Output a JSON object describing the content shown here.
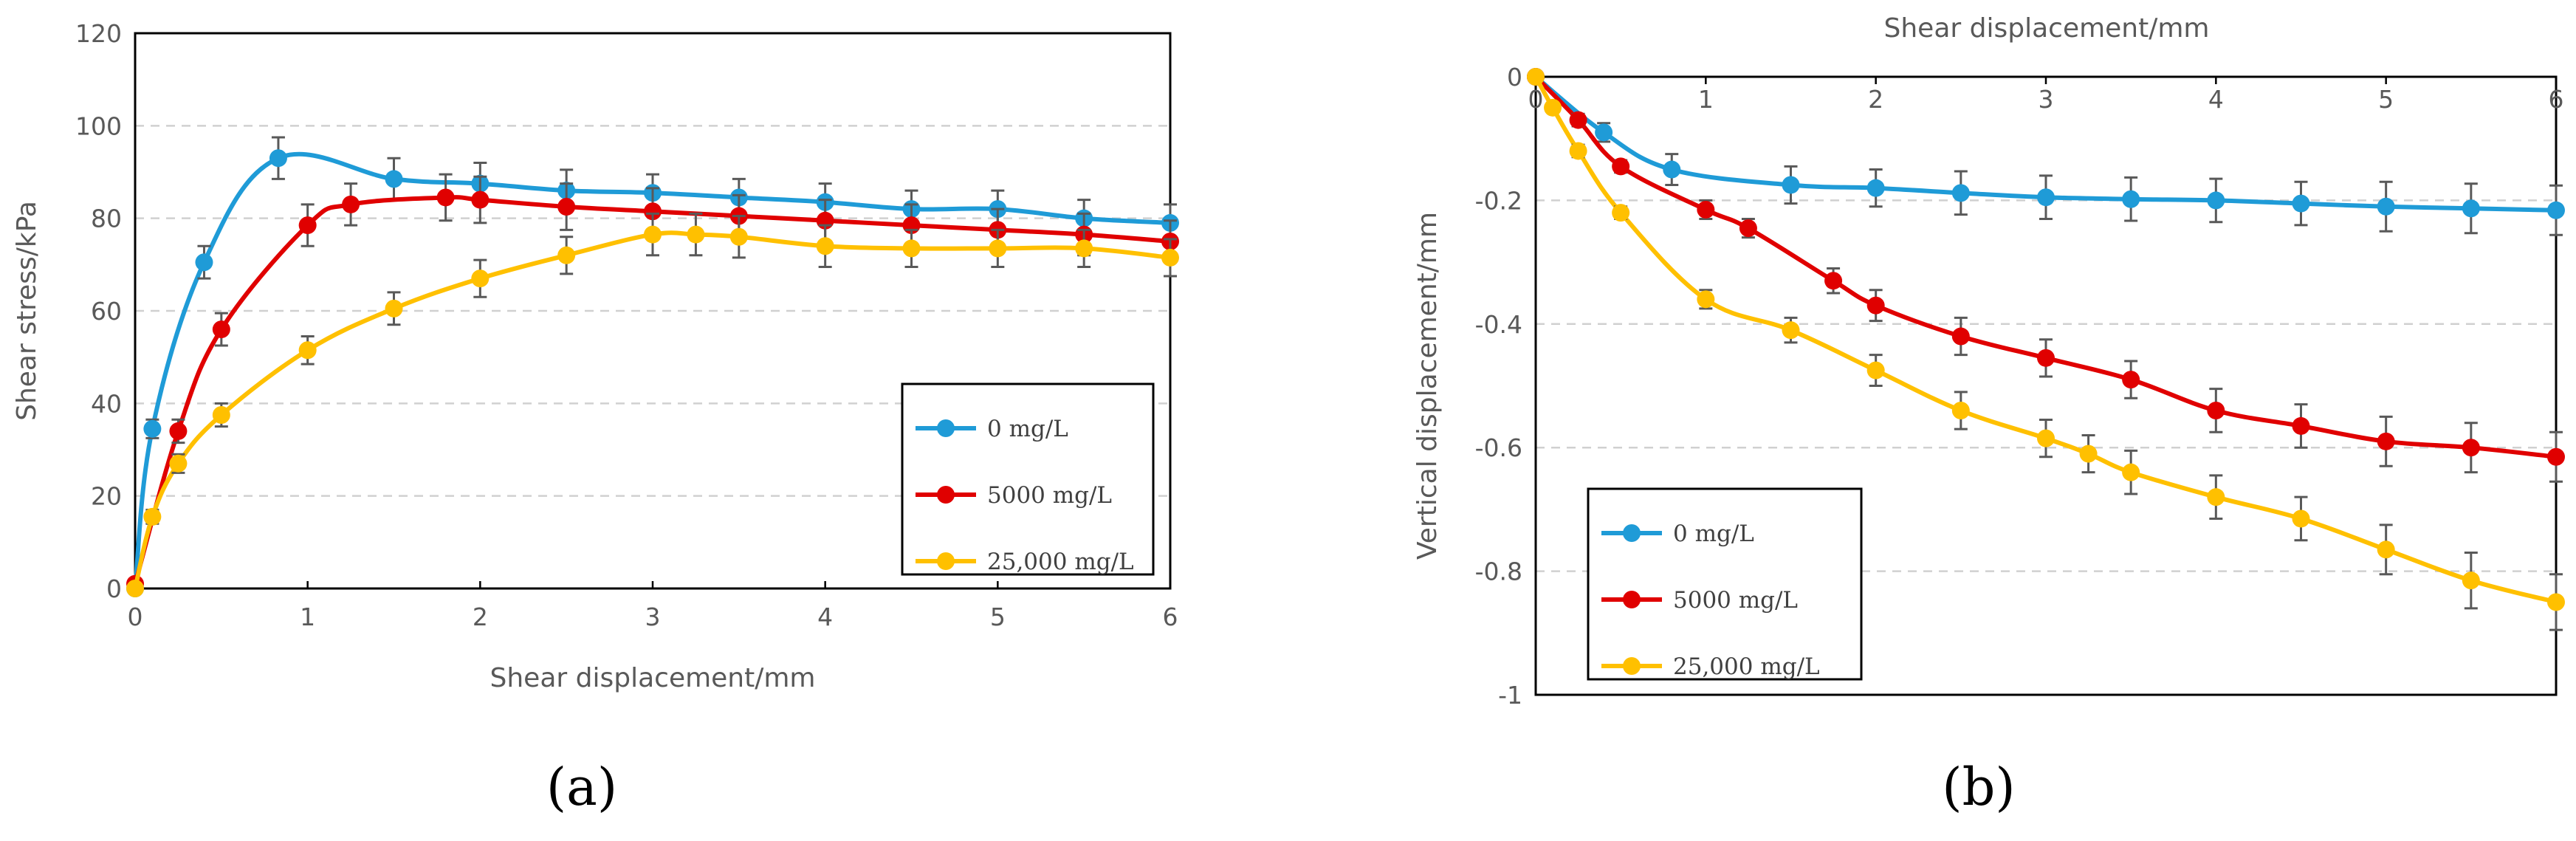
{
  "figure": {
    "label_a": "(a)",
    "label_b": "(b)"
  },
  "chart_data": [
    {
      "type": "line",
      "panel": "(a)",
      "title": "",
      "xlabel": "Shear displacement/mm",
      "ylabel": "Shear stress/kPa",
      "xlim": [
        0,
        6
      ],
      "ylim": [
        0,
        120
      ],
      "xticks": [
        0,
        1,
        2,
        3,
        4,
        5,
        6
      ],
      "yticks": [
        0,
        20,
        40,
        60,
        80,
        100,
        120
      ],
      "grid": "horizontal dashed",
      "legend_position": "center-right",
      "series": [
        {
          "name": "0 mg/L",
          "color": "#1F9BD7",
          "x": [
            0,
            0.1,
            0.4,
            0.83,
            1.5,
            2,
            2.5,
            3,
            3.5,
            4,
            4.5,
            5,
            5.5,
            6
          ],
          "y": [
            0,
            34.5,
            70.5,
            93,
            88.5,
            87.5,
            86,
            85.5,
            84.5,
            83.5,
            82,
            82,
            80,
            79
          ],
          "err": [
            0,
            2,
            3.5,
            4.5,
            4.5,
            4.5,
            4.5,
            4,
            4,
            4,
            4,
            4,
            4,
            4
          ]
        },
        {
          "name": "5000 mg/L",
          "color": "#E00000",
          "x": [
            0,
            0.25,
            0.5,
            1,
            1.25,
            1.8,
            2,
            2.5,
            3,
            3.5,
            4,
            4.5,
            5,
            5.5,
            6
          ],
          "y": [
            1,
            34,
            56,
            78.5,
            83,
            84.5,
            84,
            82.5,
            81.5,
            80.5,
            79.5,
            78.5,
            77.5,
            76.5,
            75
          ],
          "err": [
            0,
            2.5,
            3.5,
            4.5,
            4.5,
            5,
            5,
            5,
            5,
            4.5,
            4.5,
            4.5,
            4.5,
            4.5,
            4.5
          ]
        },
        {
          "name": "25,000 mg/L",
          "color": "#FFC000",
          "x": [
            0,
            0.1,
            0.25,
            0.5,
            1,
            1.5,
            2,
            2.5,
            3,
            3.25,
            3.5,
            4,
            4.5,
            5,
            5.5,
            6
          ],
          "y": [
            0,
            15.5,
            27,
            37.5,
            51.5,
            60.5,
            67,
            72,
            76.5,
            76.5,
            76,
            74,
            73.5,
            73.5,
            73.5,
            71.5
          ],
          "err": [
            0,
            1.5,
            2,
            2.5,
            3,
            3.5,
            4,
            4,
            4.5,
            4.5,
            4.5,
            4.5,
            4,
            4,
            4,
            4
          ]
        }
      ]
    },
    {
      "type": "line",
      "panel": "(b)",
      "title": "",
      "xlabel": "Shear displacement/mm",
      "ylabel": "Vertical displacement/mm",
      "xlim": [
        0,
        6
      ],
      "ylim": [
        -1,
        0
      ],
      "xticks": [
        0,
        1,
        2,
        3,
        4,
        5,
        6
      ],
      "yticks": [
        0,
        -0.2,
        -0.4,
        -0.6,
        -0.8,
        -1
      ],
      "ytick_labels": [
        "0",
        "-0.2",
        "-0.4",
        "-0.6",
        "-0.8",
        "-1"
      ],
      "x_axis_position": "top",
      "grid": "horizontal dashed",
      "legend_position": "bottom-left",
      "series": [
        {
          "name": "0 mg/L",
          "color": "#1F9BD7",
          "x": [
            0,
            0.4,
            0.8,
            1.5,
            2,
            2.5,
            3,
            3.5,
            4,
            4.5,
            5,
            5.5,
            6
          ],
          "y": [
            0,
            -0.09,
            -0.15,
            -0.175,
            -0.18,
            -0.188,
            -0.195,
            -0.198,
            -0.2,
            -0.205,
            -0.21,
            -0.213,
            -0.216
          ],
          "err": [
            0,
            0.015,
            0.025,
            0.03,
            0.03,
            0.035,
            0.035,
            0.035,
            0.035,
            0.035,
            0.04,
            0.04,
            0.04
          ]
        },
        {
          "name": "5000 mg/L",
          "color": "#E00000",
          "x": [
            0,
            0.25,
            0.5,
            1,
            1.25,
            1.75,
            2,
            2.5,
            3,
            3.5,
            4,
            4.5,
            5,
            5.5,
            6
          ],
          "y": [
            0,
            -0.07,
            -0.145,
            -0.215,
            -0.245,
            -0.33,
            -0.37,
            -0.42,
            -0.455,
            -0.49,
            -0.54,
            -0.565,
            -0.59,
            -0.6,
            -0.615
          ],
          "err": [
            0,
            0.01,
            0.01,
            0.015,
            0.015,
            0.02,
            0.025,
            0.03,
            0.03,
            0.03,
            0.035,
            0.035,
            0.04,
            0.04,
            0.04
          ]
        },
        {
          "name": "25,000 mg/L",
          "color": "#FFC000",
          "x": [
            0,
            0.1,
            0.25,
            0.5,
            1,
            1.5,
            2,
            2.5,
            3,
            3.25,
            3.5,
            4,
            4.5,
            5,
            5.5,
            6
          ],
          "y": [
            0,
            -0.05,
            -0.12,
            -0.22,
            -0.36,
            -0.41,
            -0.475,
            -0.54,
            -0.585,
            -0.61,
            -0.64,
            -0.68,
            -0.715,
            -0.765,
            -0.815,
            -0.85
          ],
          "err": [
            0,
            0.005,
            0.01,
            0.01,
            0.015,
            0.02,
            0.025,
            0.03,
            0.03,
            0.03,
            0.035,
            0.035,
            0.035,
            0.04,
            0.045,
            0.045
          ]
        }
      ]
    }
  ]
}
